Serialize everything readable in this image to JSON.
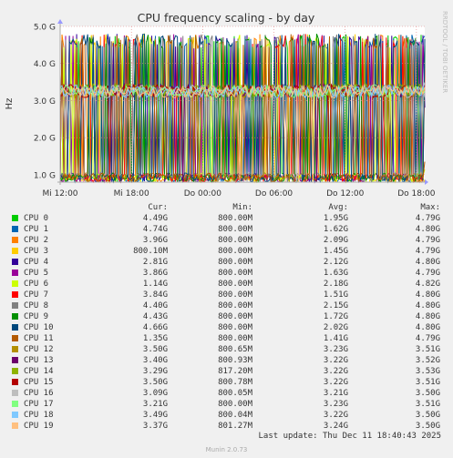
{
  "chart_data": {
    "type": "line",
    "title": "CPU frequency scaling - by day",
    "ylabel": "Hz",
    "watermark": "RRDTOOL / TOBI OETIKER",
    "yticks": [
      "1.0 G",
      "2.0 G",
      "3.0 G",
      "4.0 G",
      "5.0 G"
    ],
    "ytick_values": [
      1.0,
      2.0,
      3.0,
      4.0,
      5.0
    ],
    "ylim": [
      0.8,
      5.0
    ],
    "xticks": [
      "Mi 12:00",
      "Mi 18:00",
      "Do 00:00",
      "Do 06:00",
      "Do 12:00",
      "Do 18:00"
    ],
    "xtick_hours": [
      6,
      12,
      18,
      24,
      30,
      36
    ],
    "xlim_hours": [
      6,
      36.7
    ],
    "grid": true,
    "legend_columns": [
      "Cur:",
      "Min:",
      "Avg:",
      "Max:"
    ],
    "series": [
      {
        "name": "CPU 0",
        "color": "#00cc00",
        "cur": "4.49G",
        "min": "800.00M",
        "avg": "1.95G",
        "max": "4.79G"
      },
      {
        "name": "CPU 1",
        "color": "#0066b3",
        "cur": "4.74G",
        "min": "800.00M",
        "avg": "1.62G",
        "max": "4.80G"
      },
      {
        "name": "CPU 2",
        "color": "#ff8000",
        "cur": "3.96G",
        "min": "800.00M",
        "avg": "2.09G",
        "max": "4.79G"
      },
      {
        "name": "CPU 3",
        "color": "#ffcc00",
        "cur": "800.10M",
        "min": "800.00M",
        "avg": "1.45G",
        "max": "4.79G"
      },
      {
        "name": "CPU 4",
        "color": "#330099",
        "cur": "2.81G",
        "min": "800.00M",
        "avg": "2.12G",
        "max": "4.80G"
      },
      {
        "name": "CPU 5",
        "color": "#990099",
        "cur": "3.86G",
        "min": "800.00M",
        "avg": "1.63G",
        "max": "4.79G"
      },
      {
        "name": "CPU 6",
        "color": "#ccff00",
        "cur": "1.14G",
        "min": "800.00M",
        "avg": "2.18G",
        "max": "4.82G"
      },
      {
        "name": "CPU 7",
        "color": "#ff0000",
        "cur": "3.84G",
        "min": "800.00M",
        "avg": "1.51G",
        "max": "4.80G"
      },
      {
        "name": "CPU 8",
        "color": "#808080",
        "cur": "4.40G",
        "min": "800.00M",
        "avg": "2.15G",
        "max": "4.80G"
      },
      {
        "name": "CPU 9",
        "color": "#008f00",
        "cur": "4.43G",
        "min": "800.00M",
        "avg": "1.72G",
        "max": "4.80G"
      },
      {
        "name": "CPU 10",
        "color": "#00487d",
        "cur": "4.66G",
        "min": "800.00M",
        "avg": "2.02G",
        "max": "4.80G"
      },
      {
        "name": "CPU 11",
        "color": "#b35a00",
        "cur": "1.35G",
        "min": "800.00M",
        "avg": "1.41G",
        "max": "4.79G"
      },
      {
        "name": "CPU 12",
        "color": "#b38f00",
        "cur": "3.50G",
        "min": "800.65M",
        "avg": "3.23G",
        "max": "3.51G"
      },
      {
        "name": "CPU 13",
        "color": "#6b006b",
        "cur": "3.40G",
        "min": "800.93M",
        "avg": "3.22G",
        "max": "3.52G"
      },
      {
        "name": "CPU 14",
        "color": "#8fb300",
        "cur": "3.29G",
        "min": "817.20M",
        "avg": "3.22G",
        "max": "3.53G"
      },
      {
        "name": "CPU 15",
        "color": "#b30000",
        "cur": "3.50G",
        "min": "800.78M",
        "avg": "3.22G",
        "max": "3.51G"
      },
      {
        "name": "CPU 16",
        "color": "#bebebe",
        "cur": "3.09G",
        "min": "800.05M",
        "avg": "3.21G",
        "max": "3.50G"
      },
      {
        "name": "CPU 17",
        "color": "#80ff80",
        "cur": "3.21G",
        "min": "800.00M",
        "avg": "3.23G",
        "max": "3.51G"
      },
      {
        "name": "CPU 18",
        "color": "#80c9ff",
        "cur": "3.49G",
        "min": "800.04M",
        "avg": "3.22G",
        "max": "3.50G"
      },
      {
        "name": "CPU 19",
        "color": "#ffc080",
        "cur": "3.37G",
        "min": "801.27M",
        "avg": "3.24G",
        "max": "3.50G"
      }
    ]
  },
  "footer": {
    "last_update": "Last update: Thu Dec 11 18:40:43 2025",
    "generator": "Munin 2.0.73"
  }
}
